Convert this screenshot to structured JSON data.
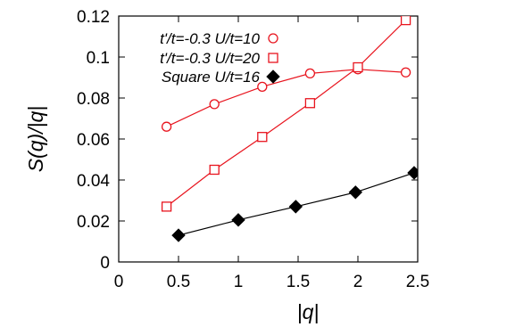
{
  "chart_data": {
    "type": "line",
    "title": "",
    "xlabel": "|q|",
    "ylabel": "S(q)/|q|",
    "xlim": [
      0,
      2.5
    ],
    "ylim": [
      0,
      0.12
    ],
    "xticks": [
      0,
      0.5,
      1,
      1.5,
      2,
      2.5
    ],
    "xtick_labels": [
      "0",
      "0.5",
      "1",
      "1.5",
      "2",
      "2.5"
    ],
    "yticks": [
      0,
      0.02,
      0.04,
      0.06,
      0.08,
      0.1,
      0.12
    ],
    "ytick_labels": [
      "0",
      "0.02",
      "0.04",
      "0.06",
      "0.08",
      "0.1",
      "0.12"
    ],
    "legend_position": "top-left",
    "grid": false,
    "series": [
      {
        "name": "t'/t=-0.3 U/t=10",
        "marker": "open-circle",
        "color": "#e8141e",
        "x": [
          0.4,
          0.8,
          1.2,
          1.6,
          2.0,
          2.4
        ],
        "y": [
          0.066,
          0.077,
          0.0855,
          0.092,
          0.094,
          0.0925
        ]
      },
      {
        "name": "t'/t=-0.3 U/t=20",
        "marker": "open-square",
        "color": "#e8141e",
        "x": [
          0.4,
          0.8,
          1.2,
          1.6,
          2.0,
          2.4
        ],
        "y": [
          0.027,
          0.045,
          0.061,
          0.0775,
          0.095,
          0.118
        ]
      },
      {
        "name": "Square U/t=16",
        "marker": "filled-diamond",
        "color": "#000000",
        "x": [
          0.5,
          1.0,
          1.48,
          1.98,
          2.47
        ],
        "y": [
          0.013,
          0.0205,
          0.027,
          0.034,
          0.0435
        ]
      }
    ]
  }
}
